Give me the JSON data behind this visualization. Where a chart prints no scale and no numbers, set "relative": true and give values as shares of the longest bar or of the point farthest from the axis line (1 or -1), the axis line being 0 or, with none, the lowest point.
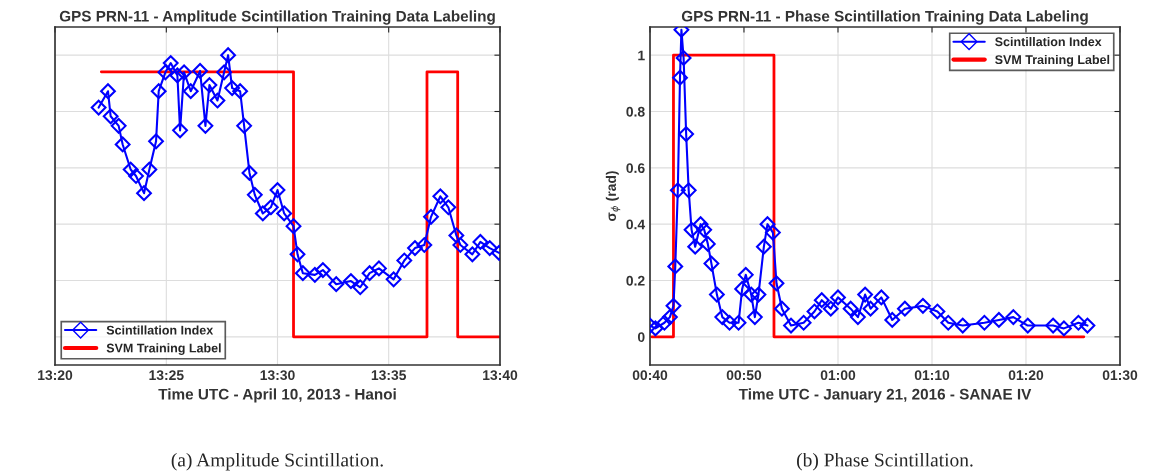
{
  "chart_data": [
    {
      "type": "line",
      "title": "GPS PRN-11 - Amplitude Scintillation Training Data Labeling",
      "xlabel": "Time UTC - April 10, 2013 - Hanoi",
      "relative": true,
      "xlim": [
        13.3333,
        13.6667
      ],
      "xticks": [
        {
          "value": 13.3333,
          "label": "13:20"
        },
        {
          "value": 13.4167,
          "label": "13:25"
        },
        {
          "value": 13.5,
          "label": "13:30"
        },
        {
          "value": 13.5833,
          "label": "13:35"
        },
        {
          "value": 13.6667,
          "label": "13:40"
        }
      ],
      "grid": true,
      "legend": "bottom left",
      "annotations": [
        "(a) Amplitude Scintillation."
      ],
      "series": [
        {
          "name": "Scintillation Index",
          "color": "#0000ff",
          "marker": "diamond",
          "line_style": "solid",
          "x": [
            13.366,
            13.373,
            13.375,
            13.381,
            13.384,
            13.39,
            13.394,
            13.4,
            13.404,
            13.409,
            13.411,
            13.416,
            13.42,
            13.425,
            13.427,
            13.43,
            13.435,
            13.442,
            13.446,
            13.449,
            13.455,
            13.46,
            13.463,
            13.466,
            13.472,
            13.475,
            13.479,
            13.483,
            13.489,
            13.495,
            13.5,
            13.505,
            13.512,
            13.515,
            13.519,
            13.528,
            13.534,
            13.544,
            13.555,
            13.562,
            13.569,
            13.576,
            13.587,
            13.595,
            13.603,
            13.61,
            13.615,
            13.622,
            13.628,
            13.634,
            13.637,
            13.646,
            13.652,
            13.659,
            13.666
          ],
          "values": [
            0.814,
            0.872,
            0.783,
            0.749,
            0.683,
            0.594,
            0.571,
            0.51,
            0.594,
            0.694,
            0.872,
            0.939,
            0.972,
            0.928,
            0.733,
            0.939,
            0.872,
            0.944,
            0.749,
            0.894,
            0.839,
            0.939,
            1.0,
            0.883,
            0.872,
            0.749,
            0.582,
            0.504,
            0.438,
            0.46,
            0.521,
            0.438,
            0.393,
            0.293,
            0.226,
            0.22,
            0.237,
            0.187,
            0.198,
            0.176,
            0.226,
            0.243,
            0.204,
            0.271,
            0.315,
            0.326,
            0.426,
            0.499,
            0.46,
            0.36,
            0.326,
            0.293,
            0.337,
            0.315,
            0.298
          ]
        },
        {
          "name": "SVM Training Label",
          "type": "step",
          "color": "#ff0000",
          "marker": "none",
          "line_style": "solid",
          "x": [
            13.368,
            13.512,
            13.612,
            13.635,
            13.666
          ],
          "values": [
            0.941,
            0,
            0.941,
            0,
            0
          ]
        }
      ]
    },
    {
      "type": "line",
      "title": "GPS PRN-11 - Phase Scintillation Training Data Labeling",
      "xlabel": "Time UTC - January 21, 2016 - SANAE IV",
      "ylabel": "σ$_{ϕ}$ (rad)",
      "xlim": [
        0.6667,
        1.5
      ],
      "xticks": [
        {
          "value": 0.6667,
          "label": "00:40"
        },
        {
          "value": 0.8333,
          "label": "00:50"
        },
        {
          "value": 1.0,
          "label": "01:00"
        },
        {
          "value": 1.1667,
          "label": "01:10"
        },
        {
          "value": 1.3333,
          "label": "01:20"
        },
        {
          "value": 1.5,
          "label": "01:30"
        }
      ],
      "ylim": [
        -0.1,
        1.1
      ],
      "yticks": [
        0,
        0.2,
        0.4,
        0.6,
        0.8,
        1
      ],
      "grid": true,
      "legend": "top right",
      "annotations": [
        "(b) Phase Scintillation."
      ],
      "series": [
        {
          "name": "Scintillation Index",
          "color": "#0000ff",
          "marker": "diamond",
          "line_style": "solid",
          "x": [
            0.6667,
            0.6763,
            0.6923,
            0.702,
            0.7083,
            0.7115,
            0.716,
            0.7199,
            0.7224,
            0.7263,
            0.7308,
            0.7353,
            0.7404,
            0.7468,
            0.7564,
            0.7628,
            0.7692,
            0.7756,
            0.7853,
            0.7949,
            0.8077,
            0.8237,
            0.8301,
            0.8365,
            0.8462,
            0.8526,
            0.859,
            0.8686,
            0.875,
            0.8846,
            0.891,
            0.9006,
            0.9167,
            0.9391,
            0.9583,
            0.9712,
            0.9872,
            1.0,
            1.0224,
            1.0353,
            1.0481,
            1.0577,
            1.0769,
            1.0962,
            1.1186,
            1.1506,
            1.1763,
            1.1955,
            1.2212,
            1.2596,
            1.2853,
            1.3109,
            1.3365,
            1.3814,
            1.4006,
            1.4263,
            1.4423
          ],
          "values": [
            0.04,
            0.03,
            0.05,
            0.07,
            0.11,
            0.25,
            0.52,
            0.92,
            1.09,
            0.99,
            0.72,
            0.52,
            0.38,
            0.32,
            0.4,
            0.38,
            0.33,
            0.26,
            0.15,
            0.07,
            0.05,
            0.05,
            0.17,
            0.22,
            0.15,
            0.07,
            0.15,
            0.32,
            0.4,
            0.37,
            0.19,
            0.1,
            0.04,
            0.05,
            0.09,
            0.13,
            0.1,
            0.14,
            0.1,
            0.07,
            0.15,
            0.1,
            0.14,
            0.06,
            0.1,
            0.11,
            0.09,
            0.05,
            0.04,
            0.05,
            0.06,
            0.07,
            0.04,
            0.04,
            0.03,
            0.05,
            0.04
          ]
        },
        {
          "name": "SVM Training Label",
          "type": "step",
          "color": "#ff0000",
          "marker": "none",
          "line_style": "solid",
          "x": [
            0.6699,
            0.7083,
            0.8865,
            1.4359
          ],
          "values": [
            0,
            1,
            0,
            0
          ]
        }
      ]
    }
  ]
}
